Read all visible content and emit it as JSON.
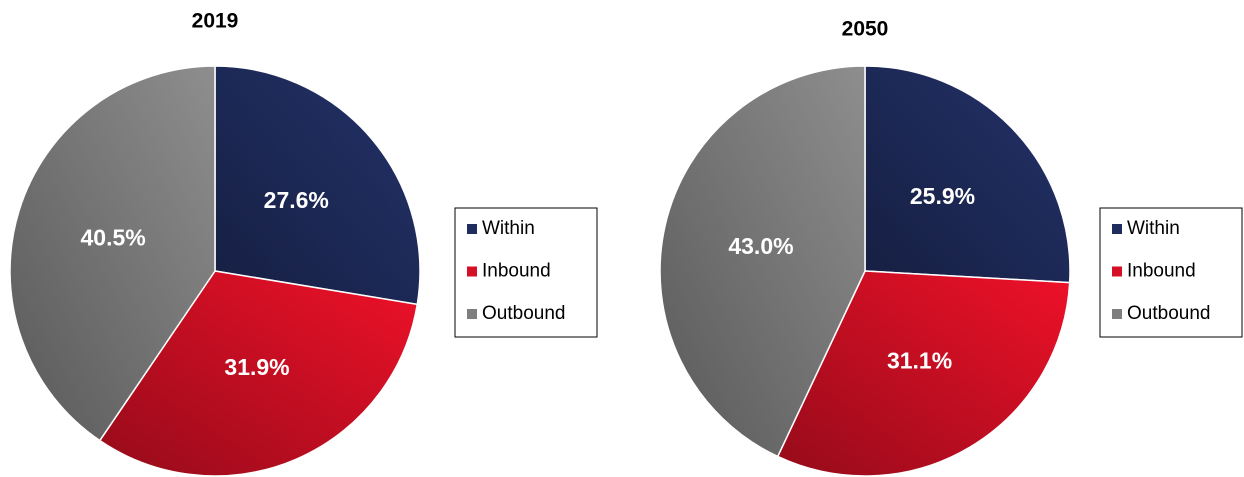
{
  "chart_data": [
    {
      "type": "pie",
      "title": "2019",
      "categories": [
        "Within",
        "Inbound",
        "Outbound"
      ],
      "values": [
        27.6,
        31.9,
        40.5
      ],
      "value_labels": [
        "27.6%",
        "31.9%",
        "40.5%"
      ],
      "colors": [
        "#1f2d5e",
        "#d50f25",
        "#7f7f7f"
      ]
    },
    {
      "type": "pie",
      "title": "2050",
      "categories": [
        "Within",
        "Inbound",
        "Outbound"
      ],
      "values": [
        25.9,
        31.1,
        43.0
      ],
      "value_labels": [
        "25.9%",
        "31.1%",
        "43.0%"
      ],
      "colors": [
        "#1f2d5e",
        "#d50f25",
        "#7f7f7f"
      ]
    }
  ]
}
